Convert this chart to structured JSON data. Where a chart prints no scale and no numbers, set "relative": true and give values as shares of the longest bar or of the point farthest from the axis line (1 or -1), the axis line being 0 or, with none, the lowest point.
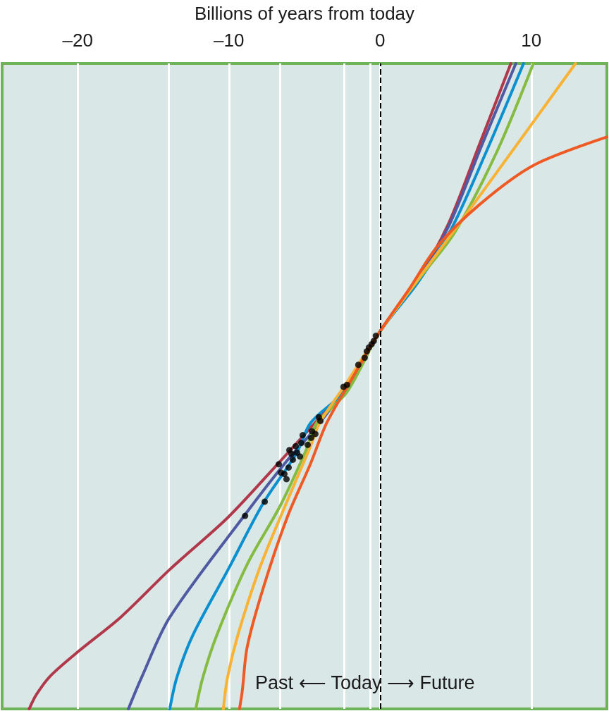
{
  "chart_data": {
    "type": "line",
    "xlabel": "Billions of years from today",
    "relative": true,
    "xlim": [
      -25,
      15
    ],
    "xticks": [
      {
        "value": -20,
        "label": "–20"
      },
      {
        "value": -14,
        "label": null
      },
      {
        "value": -10,
        "label": "–10"
      },
      {
        "value": -6.6,
        "label": null
      },
      {
        "value": -2.4,
        "label": null
      },
      {
        "value": -0.65,
        "label": null
      },
      0,
      10
    ],
    "grid": "x",
    "tick_labels": "x",
    "ref_lines": [
      {
        "axis": "x",
        "value": 0,
        "color": "#000000",
        "line_style": "dashed"
      }
    ],
    "annotations": [
      "Past ⟵ Today ⟶ Future"
    ],
    "series": [
      {
        "color": "#b0384a",
        "x": [
          -23.21,
          -22.74,
          -21.81,
          -19.91,
          -17.16,
          -13.91,
          -10.05,
          -6.79,
          -4.74,
          -2.33,
          0,
          2.33,
          4.47,
          6.56,
          8.65
        ],
        "values": [
          0,
          0.022,
          0.051,
          0.09,
          0.142,
          0.216,
          0.297,
          0.379,
          0.432,
          0.496,
          0.585,
          0.659,
          0.749,
          0.874,
          1.0
        ]
      },
      {
        "color": "#4f5aa3",
        "x": [
          -16.65,
          -15.77,
          -13.91,
          -8.93,
          -6.14,
          -4.37,
          -2.33,
          0,
          2.42,
          4.56,
          6.74,
          8.98
        ],
        "values": [
          0,
          0.049,
          0.142,
          0.301,
          0.385,
          0.432,
          0.496,
          0.585,
          0.661,
          0.749,
          0.874,
          1.0
        ]
      },
      {
        "color": "#0a8fd0",
        "x": [
          -13.91,
          -13.44,
          -12.37,
          -10.05,
          -7.72,
          -5.53,
          -4.6,
          -2.28,
          0,
          2.51,
          4.7,
          7.02,
          9.49
        ],
        "values": [
          0,
          0.049,
          0.115,
          0.216,
          0.319,
          0.396,
          0.443,
          0.494,
          0.585,
          0.661,
          0.743,
          0.863,
          1.0
        ]
      },
      {
        "color": "#84bb40",
        "x": [
          -12.19,
          -11.72,
          -10.79,
          -8.79,
          -6.6,
          -4.93,
          -4.2,
          -2.19,
          0,
          2.6,
          4.93,
          7.72,
          10.14
        ],
        "values": [
          0,
          0.049,
          0.115,
          0.224,
          0.315,
          0.399,
          0.443,
          0.491,
          0.585,
          0.667,
          0.738,
          0.863,
          1.0
        ]
      },
      {
        "color": "#f9b233",
        "x": [
          -10.37,
          -10.09,
          -9.4,
          -8.0,
          -6.6,
          -4.6,
          -4.0,
          -2.28,
          0,
          6.47,
          12.93
        ],
        "values": [
          0,
          0.049,
          0.115,
          0.216,
          0.297,
          0.407,
          0.443,
          0.503,
          0.585,
          0.791,
          1.0
        ]
      },
      {
        "color": "#ef5a24",
        "x": [
          -9.3,
          -9.12,
          -8.79,
          -7.72,
          -6.14,
          -4.6,
          -3.53,
          -1.95,
          0,
          1.91,
          3.77,
          6.56,
          10.14,
          15.0
        ],
        "values": [
          0,
          0.027,
          0.096,
          0.188,
          0.297,
          0.38,
          0.443,
          0.508,
          0.585,
          0.65,
          0.716,
          0.781,
          0.842,
          0.886
        ]
      },
      {
        "type": "scatter",
        "color": "#000000",
        "x": [
          -0.28,
          -0.42,
          -0.56,
          -0.74,
          -0.88,
          -1.02,
          -1.44,
          -2.19,
          -2.42,
          -4.05,
          -3.95,
          -5.12,
          -4.51,
          -4.28,
          -4.56,
          -5.21,
          -4.79,
          -5.58,
          -6.0,
          -5.86,
          -5.49,
          -5.3,
          -5.77,
          -6.7,
          -6.05,
          -6.56,
          -6.33,
          -6.19,
          -7.63,
          -8.93
        ],
        "values": [
          0.578,
          0.57,
          0.565,
          0.56,
          0.554,
          0.544,
          0.533,
          0.502,
          0.499,
          0.452,
          0.446,
          0.424,
          0.43,
          0.426,
          0.42,
          0.412,
          0.409,
          0.407,
          0.401,
          0.395,
          0.397,
          0.391,
          0.386,
          0.379,
          0.374,
          0.366,
          0.364,
          0.356,
          0.321,
          0.299
        ]
      }
    ]
  }
}
